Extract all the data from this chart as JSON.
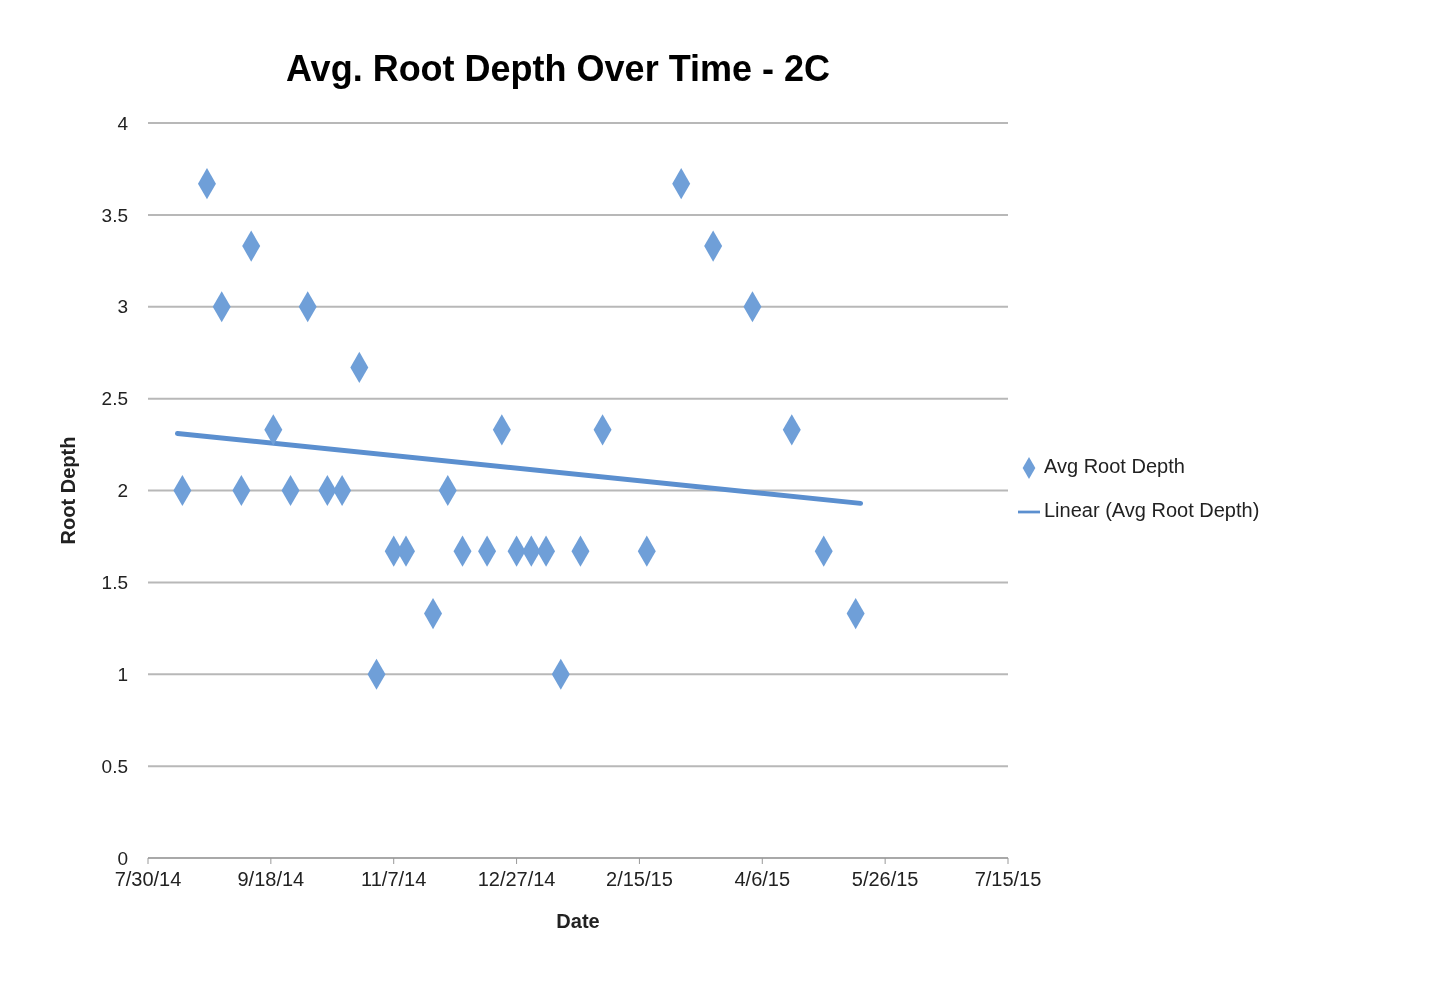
{
  "chart_data": {
    "type": "scatter",
    "title": "Avg. Root Depth Over Time - 2C",
    "xlabel": "Date",
    "ylabel": "Root Depth",
    "x": [
      "2014-08-13",
      "2014-08-23",
      "2014-08-29",
      "2014-09-06",
      "2014-09-10",
      "2014-09-19",
      "2014-09-26",
      "2014-10-03",
      "2014-10-11",
      "2014-10-17",
      "2014-10-24",
      "2014-10-31",
      "2014-11-07",
      "2014-11-12",
      "2014-11-23",
      "2014-11-29",
      "2014-12-05",
      "2014-12-15",
      "2014-12-21",
      "2014-12-27",
      "2015-01-02",
      "2015-01-08",
      "2015-01-14",
      "2015-01-22",
      "2015-01-31",
      "2015-02-18",
      "2015-03-04",
      "2015-03-17",
      "2015-04-02",
      "2015-04-18",
      "2015-05-01",
      "2015-05-14"
    ],
    "series": [
      {
        "name": "Avg Root Depth",
        "color": "#6f9fd8",
        "marker": "diamond",
        "values": [
          2,
          3.67,
          3,
          2,
          3.33,
          2.33,
          2,
          3,
          2,
          2,
          2.67,
          1,
          1.67,
          1.67,
          1.33,
          2,
          1.67,
          1.67,
          2.33,
          1.67,
          1.67,
          1.67,
          1,
          1.67,
          2.33,
          1.67,
          3.67,
          3.33,
          3,
          2.33,
          1.67,
          1.33
        ]
      },
      {
        "name": "Linear (Avg Root Depth)",
        "type": "line",
        "color": "#5b8fcf",
        "line_style": "solid",
        "marker": "none",
        "x": [
          "2014-08-11",
          "2015-05-16"
        ],
        "values": [
          2.31,
          1.93
        ]
      }
    ],
    "xlim": [
      "2014-07-30",
      "2015-07-15"
    ],
    "xticks": [
      {
        "value": "2014-07-30",
        "label": "7/30/14"
      },
      {
        "value": "2014-09-18",
        "label": "9/18/14"
      },
      {
        "value": "2014-11-07",
        "label": "11/7/14"
      },
      {
        "value": "2014-12-27",
        "label": "12/27/14"
      },
      {
        "value": "2015-02-15",
        "label": "2/15/15"
      },
      {
        "value": "2015-04-06",
        "label": "4/6/15"
      },
      {
        "value": "2015-05-26",
        "label": "5/26/15"
      },
      {
        "value": "2015-07-15",
        "label": "7/15/15"
      }
    ],
    "ylim": [
      0,
      4
    ],
    "yticks": [
      0,
      0.5,
      1,
      1.5,
      2,
      2.5,
      3,
      3.5,
      4
    ],
    "grid": "y",
    "legend": "right"
  }
}
